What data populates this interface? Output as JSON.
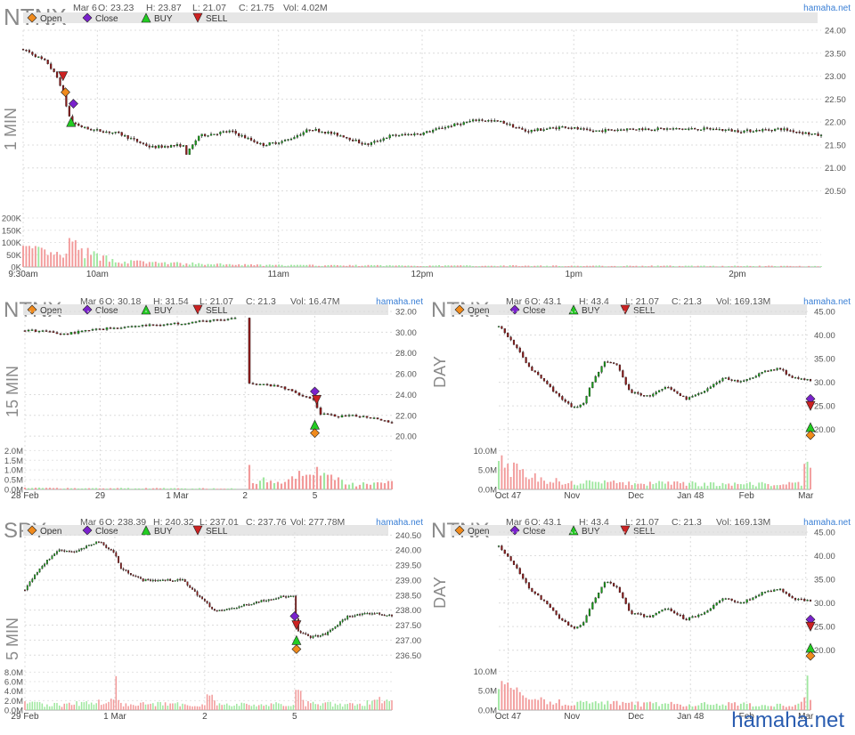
{
  "brand": {
    "site": "hamaha.net",
    "watermark": "hamaha.net"
  },
  "colors": {
    "up": "#1a9e1a",
    "down": "#8b1a1a",
    "vol_up": "#9fe79f",
    "vol_down": "#f29a9a",
    "open": "#f08a1c",
    "close": "#7a22cc",
    "buy": "#22cc22",
    "sell": "#cc2222"
  },
  "legend": {
    "open": "Open",
    "close": "Close",
    "buy": "BUY",
    "sell": "SELL"
  },
  "chart_data": [
    {
      "id": "p1",
      "type": "candlestick",
      "symbol": "NTNX",
      "timeframe": "1 MIN",
      "info": {
        "date": "Mar 6",
        "o": "O: 23.23",
        "h": "H: 23.87",
        "l": "L: 21.07",
        "c": "C: 21.75",
        "vol": "Vol: 4.02M"
      },
      "y_ticks": [
        "24.00",
        "23.50",
        "23.00",
        "22.50",
        "22.00",
        "21.50",
        "21.00",
        "20.50"
      ],
      "y_tick_values": [
        24.0,
        23.5,
        23.0,
        22.5,
        22.0,
        21.5,
        21.0,
        20.5
      ],
      "ylim": [
        20.2,
        24.0
      ],
      "vol_ticks": [
        "200K",
        "150K",
        "100K",
        "50K",
        "0K"
      ],
      "vol_tick_values": [
        200,
        150,
        100,
        50,
        0
      ],
      "vol_max": 200,
      "x_ticks": [
        "9:30am",
        "10am",
        "11am",
        "12pm",
        "1pm",
        "2pm"
      ],
      "x_tick_pos": [
        0,
        0.093,
        0.32,
        0.5,
        0.69,
        0.895
      ],
      "n": 260,
      "price_keys": [
        [
          0,
          23.6
        ],
        [
          0.01,
          23.5
        ],
        [
          0.03,
          23.3
        ],
        [
          0.045,
          22.9
        ],
        [
          0.06,
          22.0
        ],
        [
          0.08,
          21.85
        ],
        [
          0.12,
          21.75
        ],
        [
          0.16,
          21.45
        ],
        [
          0.2,
          21.5
        ],
        [
          0.205,
          21.3
        ],
        [
          0.22,
          21.7
        ],
        [
          0.26,
          21.8
        ],
        [
          0.3,
          21.5
        ],
        [
          0.33,
          21.6
        ],
        [
          0.36,
          21.85
        ],
        [
          0.4,
          21.7
        ],
        [
          0.43,
          21.5
        ],
        [
          0.46,
          21.7
        ],
        [
          0.5,
          21.75
        ],
        [
          0.53,
          21.9
        ],
        [
          0.57,
          22.05
        ],
        [
          0.6,
          22.0
        ],
        [
          0.63,
          21.8
        ],
        [
          0.68,
          21.9
        ],
        [
          0.71,
          21.8
        ],
        [
          0.76,
          21.85
        ],
        [
          0.8,
          21.85
        ],
        [
          0.86,
          21.85
        ],
        [
          0.9,
          21.8
        ],
        [
          0.95,
          21.85
        ],
        [
          1,
          21.7
        ]
      ],
      "vol_keys": [
        [
          0,
          80
        ],
        [
          0.05,
          45
        ],
        [
          0.06,
          110
        ],
        [
          0.07,
          70
        ],
        [
          0.12,
          25
        ],
        [
          0.2,
          15
        ],
        [
          0.3,
          8
        ],
        [
          0.5,
          6
        ],
        [
          0.7,
          5
        ],
        [
          1,
          4
        ]
      ],
      "markers": [
        {
          "kind": "sell",
          "x": 0.05,
          "y": 23.0
        },
        {
          "kind": "open",
          "x": 0.053,
          "y": 22.65
        },
        {
          "kind": "close",
          "x": 0.063,
          "y": 22.4
        },
        {
          "kind": "buy",
          "x": 0.06,
          "y": 22.0
        }
      ]
    },
    {
      "id": "p2",
      "type": "candlestick",
      "symbol": "NTNX",
      "timeframe": "15 MIN",
      "info": {
        "date": "Mar 6",
        "o": "O: 30.18",
        "h": "H: 31.54",
        "l": "L: 21.07",
        "c": "C: 21.3",
        "vol": "Vol: 16.47M"
      },
      "y_ticks": [
        "32.00",
        "30.00",
        "28.00",
        "26.00",
        "24.00",
        "22.00",
        "20.00"
      ],
      "y_tick_values": [
        32,
        30,
        28,
        26,
        24,
        22,
        20
      ],
      "ylim": [
        19.5,
        32.0
      ],
      "vol_ticks": [
        "2.0M",
        "1.5M",
        "1.0M",
        "0.5M",
        "0.0M"
      ],
      "vol_tick_values": [
        2.0,
        1.5,
        1.0,
        0.5,
        0.0
      ],
      "vol_max": 2.2,
      "x_ticks": [
        "28 Feb",
        "29",
        "1 Mar",
        "2",
        "5"
      ],
      "x_tick_pos": [
        0,
        0.205,
        0.415,
        0.6,
        0.79
      ],
      "n": 104,
      "price_keys": [
        [
          0,
          30.2
        ],
        [
          0.05,
          30.1
        ],
        [
          0.1,
          29.8
        ],
        [
          0.2,
          30.3
        ],
        [
          0.3,
          30.6
        ],
        [
          0.4,
          30.8
        ],
        [
          0.5,
          31.1
        ],
        [
          0.58,
          31.3
        ]
      ],
      "gap_after": 0.58,
      "price_keys2": [
        [
          0.605,
          25.2
        ],
        [
          0.7,
          24.7
        ],
        [
          0.75,
          24.0
        ],
        [
          0.79,
          23.5
        ],
        [
          0.8,
          22.2
        ],
        [
          0.85,
          21.9
        ],
        [
          0.9,
          21.95
        ],
        [
          0.95,
          21.8
        ],
        [
          1,
          21.3
        ]
      ],
      "vol_keys": [
        [
          0,
          0.08
        ],
        [
          0.3,
          0.06
        ],
        [
          0.58,
          0.05
        ],
        [
          0.6,
          1.6
        ],
        [
          0.62,
          0.6
        ],
        [
          0.7,
          0.3
        ],
        [
          0.79,
          1.3
        ],
        [
          0.82,
          0.7
        ],
        [
          0.9,
          0.3
        ],
        [
          1,
          0.4
        ]
      ],
      "markers": [
        {
          "kind": "close",
          "x": 0.79,
          "y": 24.3
        },
        {
          "kind": "sell",
          "x": 0.795,
          "y": 23.5
        },
        {
          "kind": "buy",
          "x": 0.79,
          "y": 21.1
        },
        {
          "kind": "open",
          "x": 0.79,
          "y": 20.3
        }
      ]
    },
    {
      "id": "p3",
      "type": "candlestick",
      "symbol": "NTNX",
      "timeframe": "DAY",
      "info": {
        "date": "Mar 6",
        "o": "O: 43.1",
        "h": "H: 43.4",
        "l": "L: 21.07",
        "c": "C: 21.3",
        "vol": "Vol: 169.13M"
      },
      "y_ticks": [
        "45.00",
        "40.00",
        "35.00",
        "30.00",
        "25.00",
        "20.00"
      ],
      "y_tick_values": [
        45,
        40,
        35,
        30,
        25,
        20
      ],
      "ylim": [
        17.5,
        45.0
      ],
      "vol_ticks": [
        "10.0M",
        "5.0M",
        "0.0M"
      ],
      "vol_tick_values": [
        10,
        5,
        0
      ],
      "vol_max": 11,
      "x_ticks": [
        "Oct 47",
        "Nov",
        "Dec",
        "Jan 48",
        "Feb",
        "Mar"
      ],
      "x_tick_pos": [
        0.03,
        0.235,
        0.44,
        0.615,
        0.795,
        0.985
      ],
      "n": 104,
      "price_keys": [
        [
          0,
          42
        ],
        [
          0.05,
          38
        ],
        [
          0.1,
          33
        ],
        [
          0.15,
          30
        ],
        [
          0.2,
          26.5
        ],
        [
          0.24,
          24.5
        ],
        [
          0.27,
          25.5
        ],
        [
          0.3,
          30
        ],
        [
          0.34,
          34.5
        ],
        [
          0.38,
          33.5
        ],
        [
          0.42,
          28
        ],
        [
          0.48,
          27
        ],
        [
          0.54,
          29
        ],
        [
          0.6,
          26.5
        ],
        [
          0.66,
          28
        ],
        [
          0.72,
          31
        ],
        [
          0.78,
          30
        ],
        [
          0.84,
          32
        ],
        [
          0.9,
          33
        ],
        [
          0.94,
          31
        ],
        [
          0.98,
          30.5
        ]
      ],
      "vol_keys": [
        [
          0,
          9
        ],
        [
          0.04,
          6
        ],
        [
          0.1,
          3.5
        ],
        [
          0.2,
          2.2
        ],
        [
          0.4,
          1.8
        ],
        [
          0.6,
          1.6
        ],
        [
          0.8,
          1.6
        ],
        [
          0.97,
          1.5
        ],
        [
          0.985,
          8
        ],
        [
          1,
          5
        ]
      ],
      "markers": [
        {
          "kind": "close",
          "x": 1.0,
          "y": 26.5
        },
        {
          "kind": "sell",
          "x": 1.0,
          "y": 25.0
        },
        {
          "kind": "buy",
          "x": 1.0,
          "y": 20.5
        },
        {
          "kind": "open",
          "x": 1.0,
          "y": 18.8
        }
      ]
    },
    {
      "id": "p4",
      "type": "candlestick",
      "symbol": "SPY",
      "timeframe": "5 MIN",
      "info": {
        "date": "Mar 6",
        "o": "O: 238.39",
        "h": "H: 240.32",
        "l": "L: 237.01",
        "c": "C: 237.76",
        "vol": "Vol: 277.78M"
      },
      "y_ticks": [
        "240.50",
        "240.00",
        "239.50",
        "239.00",
        "238.50",
        "238.00",
        "237.50",
        "237.00",
        "236.50"
      ],
      "y_tick_values": [
        240.5,
        240.0,
        239.5,
        239.0,
        238.5,
        238.0,
        237.5,
        237.0,
        236.5
      ],
      "ylim": [
        236.3,
        240.6
      ],
      "vol_ticks": [
        "8.0M",
        "6.0M",
        "4.0M",
        "2.0M",
        "0.0M"
      ],
      "vol_tick_values": [
        8,
        6,
        4,
        2,
        0
      ],
      "vol_max": 9,
      "x_ticks": [
        "29 Feb",
        "1 Mar",
        "2",
        "5"
      ],
      "x_tick_pos": [
        0,
        0.245,
        0.49,
        0.735
      ],
      "n": 150,
      "price_keys": [
        [
          0,
          238.7
        ],
        [
          0.04,
          239.4
        ],
        [
          0.09,
          240.0
        ],
        [
          0.14,
          239.95
        ],
        [
          0.2,
          240.3
        ],
        [
          0.245,
          239.9
        ],
        [
          0.26,
          239.4
        ],
        [
          0.32,
          239.0
        ],
        [
          0.38,
          239.0
        ],
        [
          0.43,
          239.0
        ],
        [
          0.48,
          238.4
        ],
        [
          0.52,
          237.95
        ],
        [
          0.58,
          238.1
        ],
        [
          0.64,
          238.3
        ],
        [
          0.7,
          238.45
        ],
        [
          0.735,
          238.45
        ],
        [
          0.74,
          237.3
        ],
        [
          0.78,
          237.1
        ],
        [
          0.82,
          237.2
        ],
        [
          0.88,
          237.8
        ],
        [
          0.95,
          237.9
        ],
        [
          1,
          237.8
        ]
      ],
      "vol_keys": [
        [
          0,
          1.5
        ],
        [
          0.1,
          1.2
        ],
        [
          0.24,
          2.2
        ],
        [
          0.245,
          7.5
        ],
        [
          0.26,
          1.5
        ],
        [
          0.49,
          1.2
        ],
        [
          0.5,
          6
        ],
        [
          0.52,
          1.2
        ],
        [
          0.735,
          1.3
        ],
        [
          0.74,
          5.5
        ],
        [
          0.76,
          1.5
        ],
        [
          0.9,
          1.2
        ],
        [
          1,
          3
        ]
      ],
      "markers": [
        {
          "kind": "close",
          "x": 0.735,
          "y": 237.8
        },
        {
          "kind": "sell",
          "x": 0.74,
          "y": 237.5
        },
        {
          "kind": "buy",
          "x": 0.74,
          "y": 237.0
        },
        {
          "kind": "open",
          "x": 0.74,
          "y": 236.7
        }
      ]
    },
    {
      "id": "p5",
      "type": "candlestick",
      "symbol": "NTNX",
      "timeframe": "DAY",
      "info": {
        "date": "Mar 6",
        "o": "O: 43.1",
        "h": "H: 43.4",
        "l": "L: 21.07",
        "c": "C: 21.3",
        "vol": "Vol: 169.13M"
      },
      "y_ticks": [
        "45.00",
        "40.00",
        "35.00",
        "30.00",
        "25.00",
        "20.00"
      ],
      "y_tick_values": [
        45,
        40,
        35,
        30,
        25,
        20
      ],
      "ylim": [
        17.5,
        45.0
      ],
      "vol_ticks": [
        "10.0M",
        "5.0M",
        "0.0M"
      ],
      "vol_tick_values": [
        10,
        5,
        0
      ],
      "vol_max": 11,
      "x_ticks": [
        "Oct 47",
        "Nov",
        "Dec",
        "Jan 48",
        "Feb",
        "Mar"
      ],
      "x_tick_pos": [
        0.03,
        0.235,
        0.44,
        0.615,
        0.795,
        0.985
      ],
      "n": 104,
      "price_keys": [
        [
          0,
          42
        ],
        [
          0.05,
          38
        ],
        [
          0.1,
          33
        ],
        [
          0.15,
          30
        ],
        [
          0.2,
          26.5
        ],
        [
          0.24,
          24.5
        ],
        [
          0.27,
          25.5
        ],
        [
          0.3,
          30
        ],
        [
          0.34,
          34.5
        ],
        [
          0.38,
          33.5
        ],
        [
          0.42,
          28
        ],
        [
          0.48,
          27
        ],
        [
          0.54,
          29
        ],
        [
          0.6,
          26.5
        ],
        [
          0.66,
          28
        ],
        [
          0.72,
          31
        ],
        [
          0.78,
          30
        ],
        [
          0.84,
          32
        ],
        [
          0.9,
          33
        ],
        [
          0.94,
          31
        ],
        [
          0.98,
          30.5
        ]
      ],
      "vol_keys": [
        [
          0,
          9
        ],
        [
          0.04,
          6
        ],
        [
          0.1,
          3.5
        ],
        [
          0.2,
          2.2
        ],
        [
          0.4,
          1.8
        ],
        [
          0.6,
          1.6
        ],
        [
          0.8,
          1.6
        ],
        [
          0.97,
          1.5
        ],
        [
          0.985,
          8
        ],
        [
          1,
          5
        ]
      ],
      "markers": [
        {
          "kind": "close",
          "x": 1.0,
          "y": 26.5
        },
        {
          "kind": "sell",
          "x": 1.0,
          "y": 25.0
        },
        {
          "kind": "buy",
          "x": 1.0,
          "y": 20.5
        },
        {
          "kind": "open",
          "x": 1.0,
          "y": 18.8
        }
      ]
    }
  ]
}
